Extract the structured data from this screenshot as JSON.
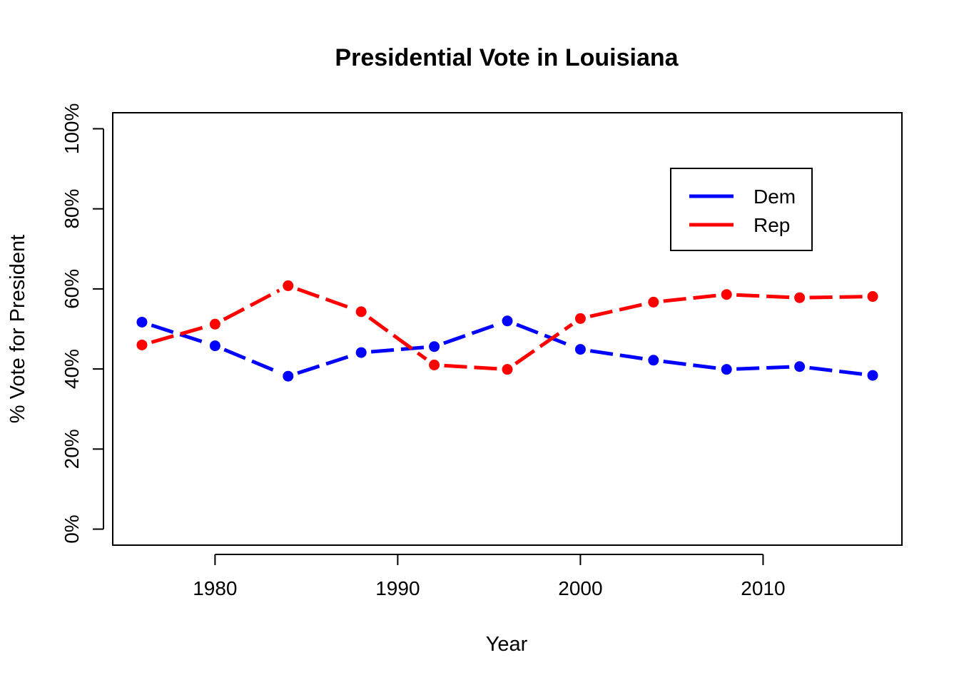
{
  "chart_data": {
    "type": "line",
    "title": "Presidential Vote in Louisiana",
    "xlabel": "Year",
    "ylabel": "% Vote for President",
    "xlim": [
      1974.4,
      2017.6
    ],
    "ylim": [
      -4,
      104
    ],
    "xticks": [
      1980,
      1990,
      2000,
      2010
    ],
    "yticks": [
      0,
      20,
      40,
      60,
      80,
      100
    ],
    "ytick_labels": [
      "0%",
      "20%",
      "40%",
      "60%",
      "80%",
      "100%"
    ],
    "x": [
      1976,
      1980,
      1984,
      1988,
      1992,
      1996,
      2000,
      2004,
      2008,
      2012,
      2016
    ],
    "series": [
      {
        "name": "Dem",
        "color": "#0000ff",
        "values": [
          51.7,
          45.8,
          38.2,
          44.1,
          45.6,
          52.0,
          44.9,
          42.2,
          39.9,
          40.6,
          38.4
        ]
      },
      {
        "name": "Rep",
        "color": "#ff0000",
        "values": [
          46.0,
          51.2,
          60.8,
          54.3,
          41.0,
          39.9,
          52.6,
          56.7,
          58.6,
          57.8,
          58.1
        ]
      }
    ],
    "legend_position": "top-right",
    "grid": false,
    "line_style": "dashed"
  }
}
